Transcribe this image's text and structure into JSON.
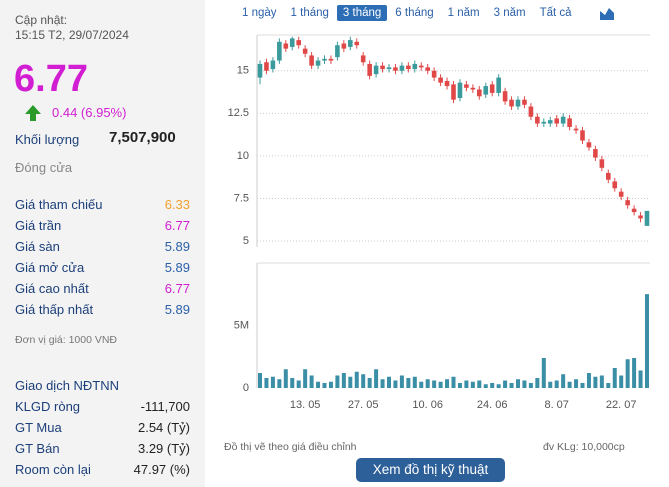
{
  "quote": {
    "updated_label": "Cập nhật:",
    "updated_time": "15:15 T2, 29/07/2024",
    "price": "6.77",
    "change": "0.44 (6.95%)",
    "volume_label": "Khối lượng",
    "volume": "7,507,900",
    "status": "Đóng cửa"
  },
  "prices": [
    {
      "label": "Giá tham chiếu",
      "value": "6.33",
      "color": "#f0a030"
    },
    {
      "label": "Giá trần",
      "value": "6.77",
      "color": "#d21ed2"
    },
    {
      "label": "Giá sàn",
      "value": "5.89",
      "color": "#2a5fa8"
    },
    {
      "label": "Giá mở cửa",
      "value": "5.89",
      "color": "#2a5fa8"
    },
    {
      "label": "Giá cao nhất",
      "value": "6.77",
      "color": "#d21ed2"
    },
    {
      "label": "Giá thấp nhất",
      "value": "5.89",
      "color": "#2a5fa8"
    }
  ],
  "unit_note": "Đơn vị giá: 1000 VNĐ",
  "foreign": {
    "title": "Giao dịch NĐTNN",
    "rows": [
      {
        "label": "KLGD ròng",
        "value": "-111,700"
      },
      {
        "label": "GT Mua",
        "value": "2.54 (Tỷ)"
      },
      {
        "label": "GT Bán",
        "value": "3.29 (Tỷ)"
      },
      {
        "label": "Room còn lại",
        "value": "47.97 (%)"
      }
    ]
  },
  "tabs": [
    "1 ngày",
    "1 tháng",
    "3 tháng",
    "6 tháng",
    "1 năm",
    "3 năm",
    "Tất cả"
  ],
  "active_tab": 2,
  "footer": {
    "note": "Đồ thị vẽ theo giá điều chỉnh",
    "unit": "đv KLg: 10,000cp",
    "button": "Xem đồ thị kỹ thuật"
  },
  "chart_data": [
    {
      "type": "candlestick",
      "up_color": "#3a9a9c",
      "down_color": "#e04848",
      "ylim": [
        4.65,
        17.1
      ],
      "yticks": [
        5,
        7.5,
        10,
        12.5,
        15
      ],
      "grid": true,
      "open": [
        14.6,
        15.5,
        15.1,
        15.6,
        16.6,
        16.4,
        16.8,
        16.3,
        15.9,
        15.3,
        15.6,
        15.7,
        15.8,
        16.6,
        16.4,
        16.7,
        15.9,
        15.4,
        14.8,
        15.3,
        15.1,
        15.2,
        15.0,
        15.3,
        15.1,
        15.3,
        15.2,
        15.0,
        14.6,
        14.4,
        14.2,
        13.4,
        14.2,
        14.0,
        13.9,
        13.6,
        14.2,
        13.7,
        13.8,
        13.3,
        12.9,
        13.3,
        12.9,
        12.3,
        11.9,
        11.9,
        12.2,
        11.9,
        12.2,
        11.6,
        11.5,
        10.8,
        10.4,
        9.8,
        9.0,
        8.5,
        7.9,
        7.4,
        6.9,
        6.5,
        5.89
      ],
      "high": [
        15.6,
        15.7,
        15.8,
        16.9,
        16.8,
        17.0,
        17.0,
        16.5,
        16.1,
        15.8,
        15.9,
        15.9,
        16.7,
        16.8,
        17.0,
        16.9,
        16.1,
        15.6,
        15.5,
        15.5,
        15.4,
        15.4,
        15.5,
        15.5,
        15.6,
        15.5,
        15.4,
        15.2,
        14.8,
        14.6,
        14.4,
        14.5,
        14.4,
        14.2,
        14.1,
        14.3,
        14.4,
        14.8,
        14.0,
        13.5,
        13.5,
        13.5,
        13.1,
        12.5,
        12.2,
        12.3,
        12.4,
        12.5,
        12.4,
        11.8,
        11.7,
        11.0,
        10.6,
        10.0,
        9.2,
        8.7,
        8.1,
        7.6,
        7.1,
        6.7,
        6.77
      ],
      "low": [
        14.2,
        14.8,
        14.9,
        15.4,
        16.1,
        16.2,
        16.3,
        15.8,
        15.1,
        15.1,
        15.4,
        15.4,
        15.6,
        16.1,
        16.2,
        16.3,
        15.3,
        14.5,
        14.6,
        14.9,
        14.9,
        14.8,
        14.8,
        14.9,
        14.9,
        15.0,
        14.8,
        14.4,
        14.1,
        13.9,
        13.1,
        13.2,
        13.8,
        13.7,
        13.3,
        13.4,
        13.5,
        13.5,
        13.0,
        12.7,
        12.7,
        12.8,
        12.1,
        11.7,
        11.7,
        11.7,
        11.7,
        11.7,
        11.5,
        11.3,
        10.7,
        10.3,
        9.7,
        9.1,
        8.4,
        7.9,
        7.4,
        6.9,
        6.5,
        6.1,
        5.89
      ],
      "close": [
        15.4,
        15.0,
        15.6,
        16.7,
        16.3,
        16.9,
        16.5,
        16.0,
        15.3,
        15.6,
        15.7,
        15.6,
        16.5,
        16.3,
        16.8,
        16.5,
        15.5,
        14.7,
        15.3,
        15.1,
        15.2,
        15.0,
        15.3,
        15.1,
        15.4,
        15.2,
        15.0,
        14.6,
        14.3,
        14.1,
        13.3,
        14.3,
        14.0,
        13.9,
        13.5,
        14.1,
        13.7,
        14.6,
        13.2,
        12.9,
        13.3,
        13.0,
        12.3,
        11.9,
        12.0,
        12.1,
        11.9,
        12.3,
        11.7,
        11.5,
        10.9,
        10.5,
        9.9,
        9.3,
        8.6,
        8.1,
        7.6,
        7.1,
        6.7,
        6.33,
        6.77
      ]
    },
    {
      "type": "bar",
      "color": "#3a8ea5",
      "ylim": [
        0,
        10000000
      ],
      "yticks": [
        0,
        {
          "value": 5000000,
          "label": "5M"
        }
      ],
      "categories": [
        null,
        null,
        null,
        null,
        null,
        null,
        null,
        "13. 05",
        null,
        null,
        null,
        null,
        null,
        null,
        null,
        null,
        "27. 05",
        null,
        null,
        null,
        null,
        null,
        null,
        null,
        null,
        null,
        "10. 06",
        null,
        null,
        null,
        null,
        null,
        null,
        null,
        null,
        null,
        "24. 06",
        null,
        null,
        null,
        null,
        null,
        null,
        null,
        null,
        null,
        "8. 07",
        null,
        null,
        null,
        null,
        null,
        null,
        null,
        null,
        null,
        "22. 07",
        null,
        null,
        null,
        null
      ],
      "values": [
        1200000,
        800000,
        900000,
        700000,
        1500000,
        800000,
        600000,
        1500000,
        1000000,
        500000,
        400000,
        500000,
        1000000,
        1200000,
        900000,
        1300000,
        1100000,
        800000,
        1500000,
        700000,
        900000,
        600000,
        1000000,
        800000,
        900000,
        500000,
        700000,
        600000,
        500000,
        700000,
        900000,
        400000,
        600000,
        500000,
        600000,
        300000,
        400000,
        300000,
        600000,
        400000,
        700000,
        600000,
        400000,
        800000,
        2400000,
        500000,
        600000,
        1100000,
        500000,
        700000,
        400000,
        1200000,
        900000,
        1000000,
        400000,
        1600000,
        1000000,
        2300000,
        2400000,
        1400000,
        7507900
      ]
    }
  ]
}
